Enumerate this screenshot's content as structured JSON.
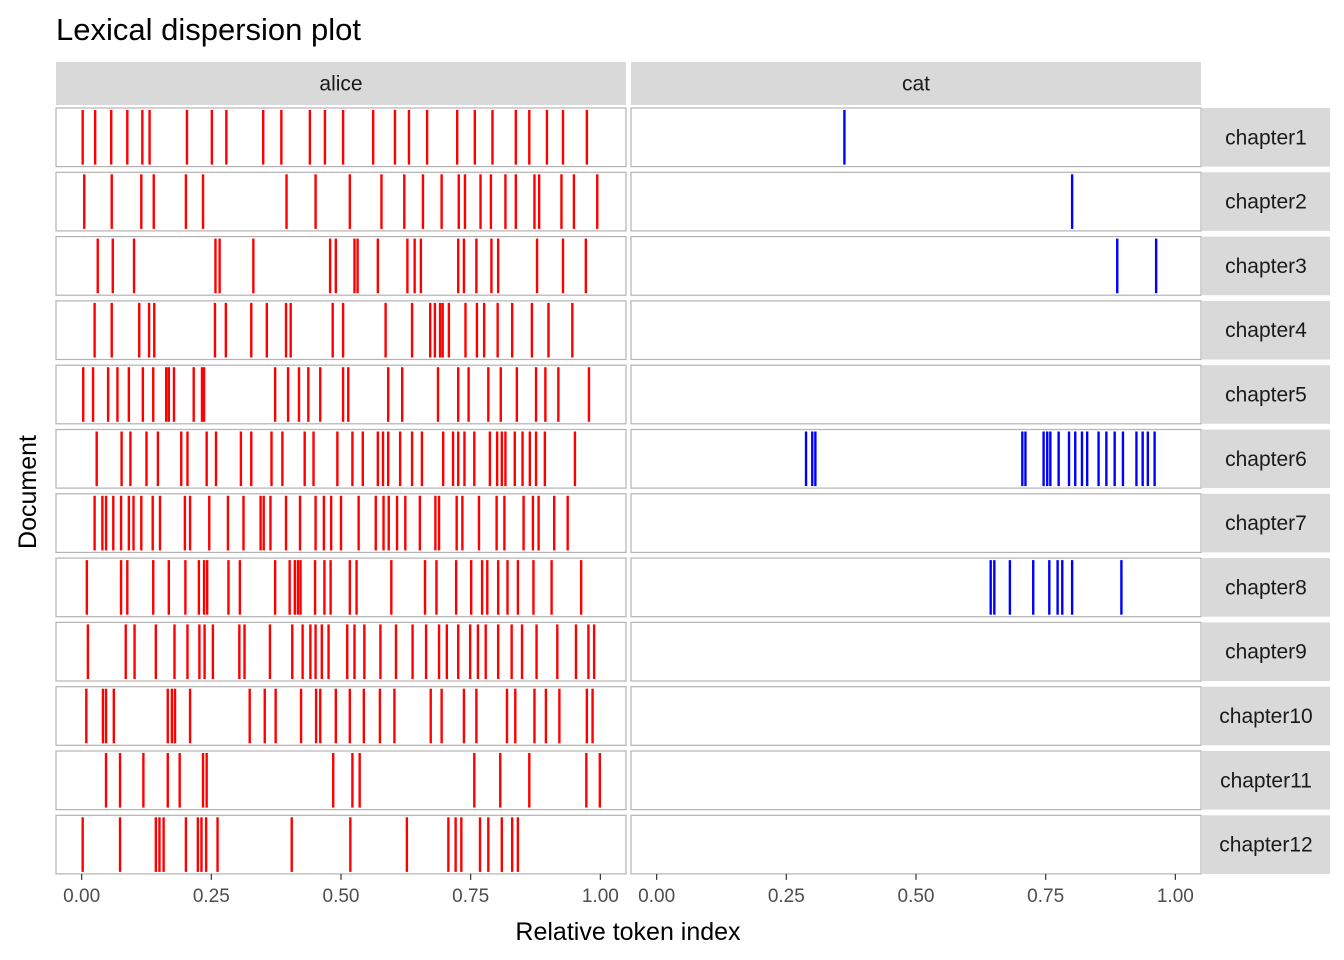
{
  "chart_data": {
    "type": "lexical-dispersion",
    "title": "Lexical dispersion plot",
    "xlabel": "Relative token index",
    "ylabel": "Document",
    "xlim": [
      0,
      1
    ],
    "x_ticks": [
      "0.00",
      "0.25",
      "0.50",
      "0.75",
      "1.00"
    ],
    "x_tick_values": [
      0,
      0.25,
      0.5,
      0.75,
      1.0
    ],
    "grid": false,
    "facets": [
      {
        "name": "alice",
        "color": "#ff0000"
      },
      {
        "name": "cat",
        "color": "#0000ff"
      }
    ],
    "documents": [
      "chapter1",
      "chapter2",
      "chapter3",
      "chapter4",
      "chapter5",
      "chapter6",
      "chapter7",
      "chapter8",
      "chapter9",
      "chapter10",
      "chapter11",
      "chapter12"
    ],
    "data": {
      "alice": {
        "chapter1": [
          0.002,
          0.026,
          0.057,
          0.088,
          0.117,
          0.131,
          0.203,
          0.251,
          0.279,
          0.35,
          0.385,
          0.44,
          0.469,
          0.504,
          0.562,
          0.604,
          0.631,
          0.666,
          0.724,
          0.758,
          0.792,
          0.837,
          0.863,
          0.897,
          0.928,
          0.974
        ],
        "chapter2": [
          0.005,
          0.058,
          0.115,
          0.139,
          0.201,
          0.234,
          0.395,
          0.451,
          0.517,
          0.578,
          0.622,
          0.658,
          0.694,
          0.727,
          0.739,
          0.769,
          0.789,
          0.817,
          0.837,
          0.873,
          0.882,
          0.925,
          0.949,
          0.994
        ],
        "chapter3": [
          0.031,
          0.06,
          0.101,
          0.258,
          0.266,
          0.331,
          0.479,
          0.49,
          0.526,
          0.532,
          0.571,
          0.628,
          0.642,
          0.654,
          0.726,
          0.737,
          0.761,
          0.79,
          0.803,
          0.878,
          0.928,
          0.972
        ],
        "chapter4": [
          0.025,
          0.058,
          0.111,
          0.13,
          0.14,
          0.257,
          0.278,
          0.327,
          0.357,
          0.394,
          0.403,
          0.484,
          0.504,
          0.586,
          0.637,
          0.672,
          0.681,
          0.691,
          0.696,
          0.708,
          0.74,
          0.762,
          0.776,
          0.802,
          0.83,
          0.868,
          0.9,
          0.946
        ],
        "chapter5": [
          0.003,
          0.022,
          0.051,
          0.069,
          0.091,
          0.118,
          0.138,
          0.163,
          0.168,
          0.178,
          0.216,
          0.232,
          0.236,
          0.373,
          0.398,
          0.419,
          0.437,
          0.46,
          0.504,
          0.514,
          0.591,
          0.618,
          0.687,
          0.726,
          0.746,
          0.784,
          0.808,
          0.839,
          0.876,
          0.894,
          0.919,
          0.978
        ],
        "chapter6": [
          0.029,
          0.077,
          0.094,
          0.125,
          0.147,
          0.192,
          0.204,
          0.241,
          0.259,
          0.307,
          0.327,
          0.366,
          0.387,
          0.43,
          0.447,
          0.493,
          0.522,
          0.542,
          0.571,
          0.581,
          0.591,
          0.614,
          0.637,
          0.656,
          0.697,
          0.716,
          0.726,
          0.738,
          0.757,
          0.787,
          0.801,
          0.81,
          0.817,
          0.835,
          0.85,
          0.864,
          0.876,
          0.893,
          0.951
        ],
        "chapter7": [
          0.025,
          0.04,
          0.047,
          0.061,
          0.076,
          0.091,
          0.1,
          0.115,
          0.137,
          0.151,
          0.199,
          0.209,
          0.246,
          0.282,
          0.312,
          0.345,
          0.351,
          0.364,
          0.394,
          0.421,
          0.451,
          0.467,
          0.481,
          0.5,
          0.534,
          0.567,
          0.582,
          0.592,
          0.608,
          0.624,
          0.652,
          0.682,
          0.689,
          0.723,
          0.734,
          0.766,
          0.8,
          0.815,
          0.852,
          0.87,
          0.881,
          0.911,
          0.937
        ],
        "chapter8": [
          0.01,
          0.076,
          0.088,
          0.138,
          0.168,
          0.2,
          0.226,
          0.236,
          0.242,
          0.283,
          0.305,
          0.373,
          0.401,
          0.411,
          0.417,
          0.422,
          0.45,
          0.468,
          0.48,
          0.517,
          0.53,
          0.597,
          0.662,
          0.684,
          0.722,
          0.751,
          0.772,
          0.782,
          0.803,
          0.821,
          0.841,
          0.871,
          0.906,
          0.963
        ],
        "chapter9": [
          0.012,
          0.085,
          0.102,
          0.143,
          0.179,
          0.204,
          0.227,
          0.237,
          0.253,
          0.304,
          0.314,
          0.363,
          0.406,
          0.426,
          0.441,
          0.451,
          0.463,
          0.476,
          0.512,
          0.526,
          0.545,
          0.576,
          0.606,
          0.638,
          0.664,
          0.689,
          0.704,
          0.726,
          0.749,
          0.764,
          0.779,
          0.803,
          0.829,
          0.849,
          0.877,
          0.917,
          0.953,
          0.977,
          0.988
        ],
        "chapter10": [
          0.009,
          0.041,
          0.047,
          0.062,
          0.166,
          0.174,
          0.18,
          0.209,
          0.324,
          0.353,
          0.374,
          0.423,
          0.452,
          0.46,
          0.49,
          0.517,
          0.544,
          0.575,
          0.603,
          0.673,
          0.694,
          0.737,
          0.761,
          0.82,
          0.836,
          0.873,
          0.895,
          0.921,
          0.974,
          0.985
        ],
        "chapter11": [
          0.047,
          0.074,
          0.119,
          0.166,
          0.189,
          0.234,
          0.241,
          0.485,
          0.522,
          0.536,
          0.757,
          0.807,
          0.863,
          0.973,
          0.999
        ],
        "chapter12": [
          0.002,
          0.074,
          0.143,
          0.15,
          0.158,
          0.201,
          0.224,
          0.231,
          0.24,
          0.262,
          0.405,
          0.518,
          0.627,
          0.707,
          0.721,
          0.732,
          0.768,
          0.784,
          0.81,
          0.83,
          0.841
        ]
      },
      "cat": {
        "chapter1": [
          0.362
        ],
        "chapter2": [
          0.801
        ],
        "chapter3": [
          0.888,
          0.963
        ],
        "chapter4": [],
        "chapter5": [],
        "chapter6": [
          0.288,
          0.3,
          0.306,
          0.705,
          0.711,
          0.746,
          0.753,
          0.759,
          0.775,
          0.795,
          0.807,
          0.82,
          0.83,
          0.852,
          0.867,
          0.883,
          0.899,
          0.925,
          0.937,
          0.947,
          0.96
        ],
        "chapter7": [],
        "chapter8": [
          0.644,
          0.651,
          0.681,
          0.726,
          0.757,
          0.773,
          0.782,
          0.801,
          0.896
        ],
        "chapter9": [],
        "chapter10": [],
        "chapter11": [],
        "chapter12": []
      }
    }
  }
}
